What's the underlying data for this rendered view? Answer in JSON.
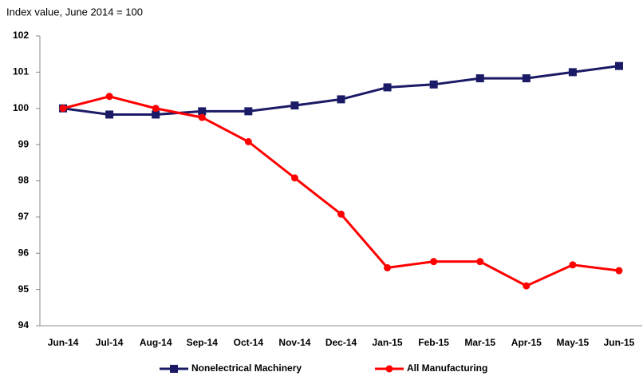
{
  "chart_data": {
    "type": "line",
    "title": "Index value, June 2014 = 100",
    "categories": [
      "Jun-14",
      "Jul-14",
      "Aug-14",
      "Sep-14",
      "Oct-14",
      "Nov-14",
      "Dec-14",
      "Jan-15",
      "Feb-15",
      "Mar-15",
      "Apr-15",
      "May-15",
      "Jun-15"
    ],
    "series": [
      {
        "name": "Nonelectrical Machinery",
        "color": "#1a1a66",
        "marker": "square",
        "values": [
          100,
          99.83,
          99.83,
          99.92,
          99.92,
          100.08,
          100.25,
          100.58,
          100.66,
          100.83,
          100.83,
          101,
          101.17
        ]
      },
      {
        "name": "All Manufacturing",
        "color": "#ff0000",
        "marker": "circle",
        "values": [
          100,
          100.33,
          100,
          99.75,
          99.08,
          98.08,
          97.08,
          95.6,
          95.77,
          95.77,
          95.1,
          95.68,
          95.52
        ]
      }
    ],
    "ylim": [
      94,
      102
    ],
    "yticks": [
      94,
      95,
      96,
      97,
      98,
      99,
      100,
      101,
      102
    ],
    "grid": false,
    "legend": "bottom"
  }
}
